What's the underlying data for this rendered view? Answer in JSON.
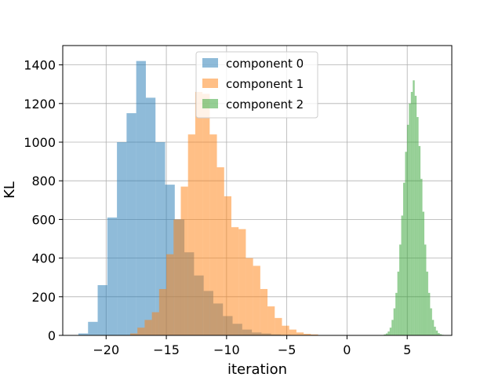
{
  "chart_data": {
    "type": "histogram",
    "title": "",
    "xlabel": "iteration",
    "ylabel": "KL",
    "xlim": [
      -23.6,
      8.7
    ],
    "ylim": [
      0,
      1500
    ],
    "grid": true,
    "legend_placement": "top-center",
    "xticks": [
      -20,
      -15,
      -10,
      -5,
      0,
      5
    ],
    "xtick_labels": [
      "−20",
      "−15",
      "−10",
      "−5",
      "0",
      "5"
    ],
    "yticks": [
      0,
      200,
      400,
      600,
      800,
      1000,
      1200,
      1400
    ],
    "ytick_labels": [
      "0",
      "200",
      "400",
      "600",
      "800",
      "1000",
      "1200",
      "1400"
    ],
    "series": [
      {
        "name": "component 0",
        "color": "#1f77b4",
        "opacity": 0.5,
        "bin_start": -22.3,
        "bin_width": 0.8,
        "counts": [
          10,
          70,
          260,
          610,
          1000,
          1150,
          1420,
          1230,
          1000,
          780,
          600,
          430,
          310,
          230,
          165,
          100,
          60,
          30,
          15,
          10,
          5,
          3,
          2,
          1
        ]
      },
      {
        "name": "component 1",
        "color": "#ff7f0e",
        "opacity": 0.5,
        "bin_start": -18.0,
        "bin_width": 0.6,
        "counts": [
          10,
          40,
          80,
          120,
          240,
          420,
          600,
          770,
          1040,
          1260,
          1250,
          1040,
          870,
          720,
          560,
          550,
          400,
          360,
          240,
          150,
          90,
          50,
          30,
          15,
          8,
          5,
          2,
          1
        ]
      },
      {
        "name": "component 2",
        "color": "#2ca02c",
        "opacity": 0.5,
        "bin_start": 2.9,
        "bin_width": 0.16,
        "counts": [
          2,
          5,
          10,
          20,
          40,
          80,
          140,
          220,
          330,
          470,
          620,
          790,
          950,
          1090,
          1200,
          1260,
          1320,
          1240,
          1130,
          980,
          810,
          640,
          470,
          330,
          220,
          140,
          80,
          45,
          25,
          12,
          6,
          3,
          1
        ]
      }
    ]
  }
}
